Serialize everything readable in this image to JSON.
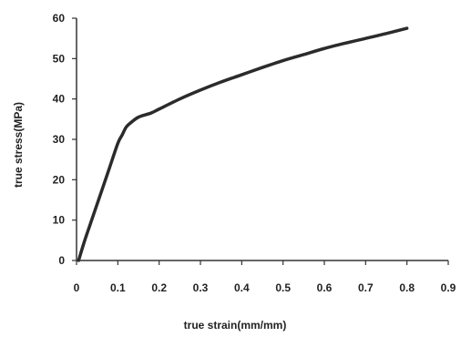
{
  "chart_data": {
    "type": "line",
    "xlabel": "true strain(mm/mm)",
    "ylabel": "true stress(MPa)",
    "xlim": [
      0,
      0.9
    ],
    "ylim": [
      0,
      60
    ],
    "xticks": [
      "0",
      "0.1",
      "0.2",
      "0.3",
      "0.4",
      "0.5",
      "0.6",
      "0.7",
      "0.8",
      "0.9"
    ],
    "yticks": [
      "0",
      "10",
      "20",
      "30",
      "40",
      "50",
      "60"
    ],
    "grid": false,
    "legend": "none",
    "series": [
      {
        "color": "#2b2b2b",
        "x": [
          0.005,
          0.02,
          0.04,
          0.06,
          0.08,
          0.1,
          0.11,
          0.12,
          0.13,
          0.15,
          0.18,
          0.2,
          0.25,
          0.3,
          0.35,
          0.4,
          0.45,
          0.5,
          0.55,
          0.6,
          0.65,
          0.7,
          0.75,
          0.8
        ],
        "y": [
          0,
          5,
          11,
          17,
          23,
          29,
          31,
          33,
          34,
          35.5,
          36.5,
          37.5,
          40,
          42.2,
          44.2,
          46,
          47.8,
          49.5,
          51,
          52.5,
          53.8,
          55,
          56.2,
          57.5
        ]
      }
    ]
  }
}
